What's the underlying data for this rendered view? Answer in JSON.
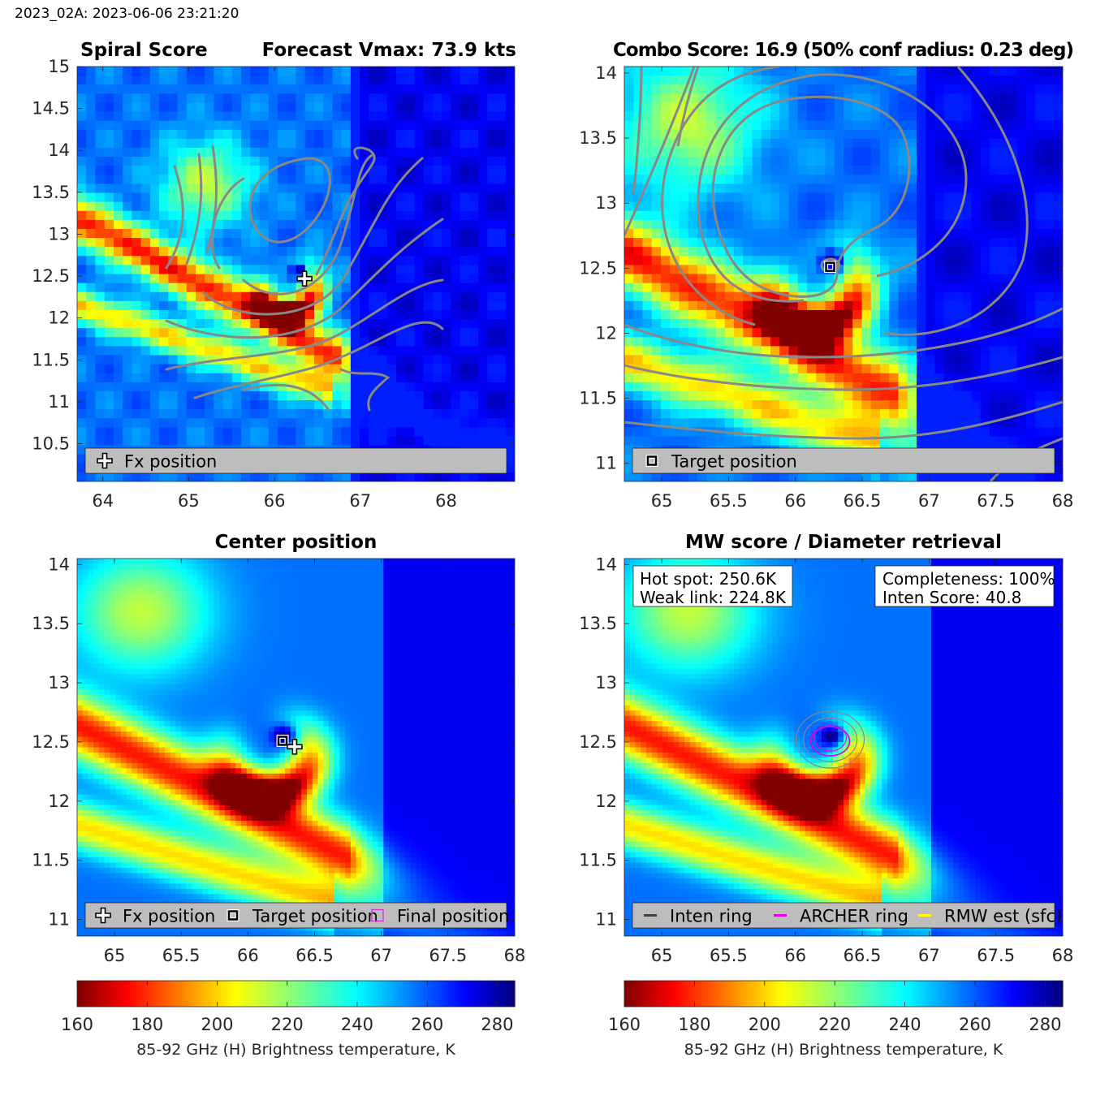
{
  "header": {
    "title": "2023_02A: 2023-06-06 23:21:20"
  },
  "colors": {
    "contour": "#888888",
    "fx_marker": "#ffffff",
    "target_marker": "#000000",
    "final_marker": "#d633d6",
    "archer_ring": "#e000e0",
    "inten_ring": "#888888",
    "rmw_ring": "#ffff00",
    "legend_bg": "#bdbdbd",
    "colormap": [
      "#800000",
      "#ff0000",
      "#ff8000",
      "#ffff00",
      "#80ff80",
      "#00ffff",
      "#0080ff",
      "#0000ff",
      "#000080"
    ]
  },
  "chart_data": [
    {
      "type": "heatmap",
      "panel": "spiral",
      "title_left": "Spiral Score",
      "title_right": "Forecast Vmax: 73.9 kts",
      "xlim": [
        63.7,
        68.8
      ],
      "ylim": [
        10.05,
        15.0
      ],
      "xticks": [
        "64",
        "65",
        "66",
        "67",
        "68"
      ],
      "xtick_values": [
        64,
        65,
        66,
        67,
        68
      ],
      "yticks": [
        "10.5",
        "11",
        "11.5",
        "12",
        "12.5",
        "13",
        "13.5",
        "14",
        "14.5",
        "15"
      ],
      "ytick_values": [
        10.5,
        11,
        11.5,
        12,
        12.5,
        13,
        13.5,
        14,
        14.5,
        15
      ],
      "legend": [
        {
          "marker": "fx",
          "label": "Fx position"
        }
      ],
      "markers": [
        {
          "kind": "fx",
          "x": 66.35,
          "y": 12.47
        }
      ]
    },
    {
      "type": "heatmap",
      "panel": "combo",
      "title": "Combo Score: 16.9  (50% conf radius: 0.23 deg)",
      "xlim": [
        64.72,
        68.0
      ],
      "ylim": [
        10.86,
        14.05
      ],
      "xticks": [
        "65",
        "65.5",
        "66",
        "66.5",
        "67",
        "67.5",
        "68"
      ],
      "xtick_values": [
        65,
        65.5,
        66,
        66.5,
        67,
        67.5,
        68
      ],
      "yticks": [
        "11",
        "11.5",
        "12",
        "12.5",
        "13",
        "13.5",
        "14"
      ],
      "ytick_values": [
        11,
        11.5,
        12,
        12.5,
        13,
        13.5,
        14
      ],
      "legend": [
        {
          "marker": "target",
          "label": "Target position"
        }
      ],
      "markers": [
        {
          "kind": "target",
          "x": 66.26,
          "y": 12.51
        }
      ]
    },
    {
      "type": "heatmap",
      "panel": "center",
      "title": "Center position",
      "xlim": [
        64.72,
        68.0
      ],
      "ylim": [
        10.86,
        14.05
      ],
      "xticks": [
        "65",
        "65.5",
        "66",
        "66.5",
        "67",
        "67.5",
        "68"
      ],
      "xtick_values": [
        65,
        65.5,
        66,
        66.5,
        67,
        67.5,
        68
      ],
      "yticks": [
        "11",
        "11.5",
        "12",
        "12.5",
        "13",
        "13.5",
        "14"
      ],
      "ytick_values": [
        11,
        11.5,
        12,
        12.5,
        13,
        13.5,
        14
      ],
      "legend": [
        {
          "marker": "fx",
          "label": "Fx position"
        },
        {
          "marker": "target",
          "label": "Target position"
        },
        {
          "marker": "final",
          "label": "Final position"
        }
      ],
      "markers": [
        {
          "kind": "final",
          "x": 66.26,
          "y": 12.51
        },
        {
          "kind": "target",
          "x": 66.26,
          "y": 12.51
        },
        {
          "kind": "fx",
          "x": 66.35,
          "y": 12.46
        }
      ],
      "colorbar": {
        "ticks": [
          "160",
          "180",
          "200",
          "220",
          "240",
          "260",
          "280"
        ],
        "range": [
          160,
          285
        ],
        "label": "85-92 GHz (H) Brightness temperature, K"
      }
    },
    {
      "type": "heatmap",
      "panel": "mw",
      "title": "MW score / Diameter retrieval",
      "xlim": [
        64.72,
        68.0
      ],
      "ylim": [
        10.86,
        14.05
      ],
      "xticks": [
        "65",
        "65.5",
        "66",
        "66.5",
        "67",
        "67.5",
        "68"
      ],
      "xtick_values": [
        65,
        65.5,
        66,
        66.5,
        67,
        67.5,
        68
      ],
      "yticks": [
        "11",
        "11.5",
        "12",
        "12.5",
        "13",
        "13.5",
        "14"
      ],
      "ytick_values": [
        11,
        11.5,
        12,
        12.5,
        13,
        13.5,
        14
      ],
      "annotations": {
        "hot_spot": "Hot spot: 250.6K",
        "weak_link": "Weak link: 224.8K",
        "completeness": "Completeness: 100%",
        "inten_score": "Inten Score: 40.8"
      },
      "legend": [
        {
          "marker": "line-gray",
          "label": "Inten ring"
        },
        {
          "marker": "line-magenta",
          "label": "ARCHER ring"
        },
        {
          "marker": "line-yellow",
          "label": "RMW est (sfc)"
        }
      ],
      "colorbar": {
        "ticks": [
          "160",
          "180",
          "200",
          "220",
          "240",
          "260",
          "280"
        ],
        "range": [
          160,
          285
        ],
        "label": "85-92 GHz (H) Brightness temperature, K"
      }
    }
  ]
}
